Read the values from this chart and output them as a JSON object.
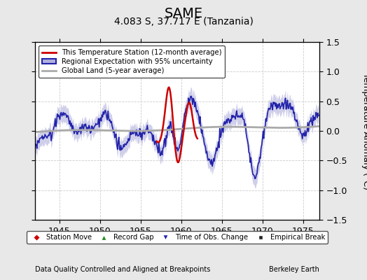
{
  "title": "SAME",
  "subtitle": "4.083 S, 37.717 E (Tanzania)",
  "ylabel_right": "Temperature Anomaly (°C)",
  "xlabel_bottom": "Data Quality Controlled and Aligned at Breakpoints",
  "credit": "Berkeley Earth",
  "xlim": [
    1942.0,
    1977.0
  ],
  "ylim": [
    -1.5,
    1.5
  ],
  "yticks": [
    -1.5,
    -1.0,
    -0.5,
    0,
    0.5,
    1.0,
    1.5
  ],
  "xticks": [
    1945,
    1950,
    1955,
    1960,
    1965,
    1970,
    1975
  ],
  "bg_color": "#e8e8e8",
  "plot_bg_color": "#ffffff",
  "grid_color": "#cccccc",
  "regional_line_color": "#2222aa",
  "regional_fill_color": "#b0b0dd",
  "station_line_color": "#cc0000",
  "global_line_color": "#aaaaaa",
  "legend_items": [
    {
      "label": "This Temperature Station (12-month average)",
      "color": "#cc0000"
    },
    {
      "label": "Regional Expectation with 95% uncertainty",
      "color": "#2222aa"
    },
    {
      "label": "Global Land (5-year average)",
      "color": "#aaaaaa"
    }
  ],
  "bottom_legend_items": [
    {
      "label": "Station Move",
      "marker": "D",
      "color": "#cc0000"
    },
    {
      "label": "Record Gap",
      "marker": "^",
      "color": "#228822"
    },
    {
      "label": "Time of Obs. Change",
      "marker": "v",
      "color": "#2222aa"
    },
    {
      "label": "Empirical Break",
      "marker": "s",
      "color": "#222222"
    }
  ],
  "title_fontsize": 14,
  "subtitle_fontsize": 10,
  "tick_fontsize": 9,
  "label_fontsize": 8
}
